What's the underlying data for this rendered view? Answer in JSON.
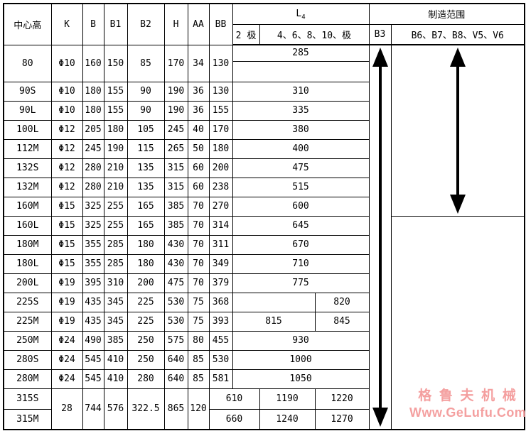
{
  "colors": {
    "background": "#ffffff",
    "border": "#000000",
    "text": "#000000",
    "watermark": "#f49f9f"
  },
  "table": {
    "headers": {
      "center_height": "中心高",
      "k": "K",
      "b": "B",
      "b1": "B1",
      "b2": "B2",
      "h": "H",
      "aa": "AA",
      "bb": "BB",
      "l4_base": "L",
      "l4_sub": "4",
      "poles_2": "2 极",
      "poles_other": "4、6、8、10、极",
      "mfg_range": "制造范围",
      "b3": "B3",
      "mounts": "B6、B7、B8、V5、V6"
    },
    "body": [
      {
        "name": "row-80",
        "cls": "r-sub",
        "cells": [
          {
            "t": "80",
            "rs": 2,
            "name": "model-cell"
          },
          {
            "t": "Φ10",
            "rs": 2
          },
          {
            "t": "160",
            "rs": 2
          },
          {
            "t": "150",
            "rs": 2
          },
          {
            "t": "85",
            "rs": 2
          },
          {
            "t": "170",
            "rs": 2
          },
          {
            "t": "34",
            "rs": 2
          },
          {
            "t": "130",
            "rs": 2
          },
          {
            "t": "285",
            "cs": 3,
            "name": "l4-cell"
          },
          {
            "arrow": "b3-range-arrow",
            "rs": 20,
            "name": "b3-range-cell"
          },
          {
            "arrow": "mfg-range-arrow",
            "rs": 9,
            "name": "mfg-range-upper-cell"
          }
        ]
      },
      {
        "name": "row-80-extra",
        "cls": "r-29",
        "cells": [
          {
            "t": "",
            "cs": 3,
            "name": "l4-empty-cell"
          }
        ]
      },
      {
        "name": "row-90S",
        "cells": [
          {
            "t": "90S",
            "name": "model-cell"
          },
          {
            "t": "Φ10"
          },
          {
            "t": "180"
          },
          {
            "t": "155"
          },
          {
            "t": "90"
          },
          {
            "t": "190"
          },
          {
            "t": "36"
          },
          {
            "t": "130"
          },
          {
            "t": "310",
            "cs": 3,
            "name": "l4-cell"
          }
        ]
      },
      {
        "name": "row-90L",
        "cells": [
          {
            "t": "90L",
            "name": "model-cell"
          },
          {
            "t": "Φ10"
          },
          {
            "t": "180"
          },
          {
            "t": "155"
          },
          {
            "t": "90"
          },
          {
            "t": "190"
          },
          {
            "t": "36"
          },
          {
            "t": "155"
          },
          {
            "t": "335",
            "cs": 3,
            "name": "l4-cell"
          }
        ]
      },
      {
        "name": "row-100L",
        "cells": [
          {
            "t": "100L",
            "name": "model-cell"
          },
          {
            "t": "Φ12"
          },
          {
            "t": "205"
          },
          {
            "t": "180"
          },
          {
            "t": "105"
          },
          {
            "t": "245"
          },
          {
            "t": "40"
          },
          {
            "t": "170"
          },
          {
            "t": "380",
            "cs": 3,
            "name": "l4-cell"
          }
        ]
      },
      {
        "name": "row-112M",
        "cells": [
          {
            "t": "112M",
            "name": "model-cell"
          },
          {
            "t": "Φ12"
          },
          {
            "t": "245"
          },
          {
            "t": "190"
          },
          {
            "t": "115"
          },
          {
            "t": "265"
          },
          {
            "t": "50"
          },
          {
            "t": "180"
          },
          {
            "t": "400",
            "cs": 3,
            "name": "l4-cell"
          }
        ]
      },
      {
        "name": "row-132S",
        "cells": [
          {
            "t": "132S",
            "name": "model-cell"
          },
          {
            "t": "Φ12"
          },
          {
            "t": "280"
          },
          {
            "t": "210"
          },
          {
            "t": "135"
          },
          {
            "t": "315"
          },
          {
            "t": "60"
          },
          {
            "t": "200"
          },
          {
            "t": "475",
            "cs": 3,
            "name": "l4-cell"
          }
        ]
      },
      {
        "name": "row-132M",
        "cells": [
          {
            "t": "132M",
            "name": "model-cell"
          },
          {
            "t": "Φ12"
          },
          {
            "t": "280"
          },
          {
            "t": "210"
          },
          {
            "t": "135"
          },
          {
            "t": "315"
          },
          {
            "t": "60"
          },
          {
            "t": "238"
          },
          {
            "t": "515",
            "cs": 3,
            "name": "l4-cell"
          }
        ]
      },
      {
        "name": "row-160M",
        "cells": [
          {
            "t": "160M",
            "name": "model-cell"
          },
          {
            "t": "Φ15"
          },
          {
            "t": "325"
          },
          {
            "t": "255"
          },
          {
            "t": "165"
          },
          {
            "t": "385"
          },
          {
            "t": "70"
          },
          {
            "t": "270"
          },
          {
            "t": "600",
            "cs": 3,
            "name": "l4-cell"
          }
        ]
      },
      {
        "name": "row-160L",
        "cells": [
          {
            "t": "160L",
            "name": "model-cell"
          },
          {
            "t": "Φ15"
          },
          {
            "t": "325"
          },
          {
            "t": "255"
          },
          {
            "t": "165"
          },
          {
            "t": "385"
          },
          {
            "t": "70"
          },
          {
            "t": "314"
          },
          {
            "t": "645",
            "cs": 3,
            "name": "l4-cell"
          },
          {
            "t": "",
            "rs": 11,
            "name": "mfg-range-lower-cell"
          }
        ]
      },
      {
        "name": "row-180M",
        "cells": [
          {
            "t": "180M",
            "name": "model-cell"
          },
          {
            "t": "Φ15"
          },
          {
            "t": "355"
          },
          {
            "t": "285"
          },
          {
            "t": "180"
          },
          {
            "t": "430"
          },
          {
            "t": "70"
          },
          {
            "t": "311"
          },
          {
            "t": "670",
            "cs": 3,
            "name": "l4-cell"
          }
        ]
      },
      {
        "name": "row-180L",
        "cells": [
          {
            "t": "180L",
            "name": "model-cell"
          },
          {
            "t": "Φ15"
          },
          {
            "t": "355"
          },
          {
            "t": "285"
          },
          {
            "t": "180"
          },
          {
            "t": "430"
          },
          {
            "t": "70"
          },
          {
            "t": "349"
          },
          {
            "t": "710",
            "cs": 3,
            "name": "l4-cell"
          }
        ]
      },
      {
        "name": "row-200L",
        "cells": [
          {
            "t": "200L",
            "name": "model-cell"
          },
          {
            "t": "Φ19"
          },
          {
            "t": "395"
          },
          {
            "t": "310"
          },
          {
            "t": "200"
          },
          {
            "t": "475"
          },
          {
            "t": "70"
          },
          {
            "t": "379"
          },
          {
            "t": "775",
            "cs": 3,
            "name": "l4-cell"
          }
        ]
      },
      {
        "name": "row-225S",
        "cells": [
          {
            "t": "225S",
            "name": "model-cell"
          },
          {
            "t": "Φ19"
          },
          {
            "t": "435"
          },
          {
            "t": "345"
          },
          {
            "t": "225"
          },
          {
            "t": "530"
          },
          {
            "t": "75"
          },
          {
            "t": "368"
          },
          {
            "t": "",
            "cs": 2,
            "name": "l4-left-cell"
          },
          {
            "t": "820",
            "name": "l4-right-cell"
          }
        ]
      },
      {
        "name": "row-225M",
        "cells": [
          {
            "t": "225M",
            "name": "model-cell"
          },
          {
            "t": "Φ19"
          },
          {
            "t": "435"
          },
          {
            "t": "345"
          },
          {
            "t": "225"
          },
          {
            "t": "530"
          },
          {
            "t": "75"
          },
          {
            "t": "393"
          },
          {
            "t": "815",
            "cs": 2,
            "name": "l4-left-cell"
          },
          {
            "t": "845",
            "name": "l4-right-cell"
          }
        ]
      },
      {
        "name": "row-250M",
        "cells": [
          {
            "t": "250M",
            "name": "model-cell"
          },
          {
            "t": "Φ24"
          },
          {
            "t": "490"
          },
          {
            "t": "385"
          },
          {
            "t": "250"
          },
          {
            "t": "575"
          },
          {
            "t": "80"
          },
          {
            "t": "455"
          },
          {
            "t": "930",
            "cs": 3,
            "name": "l4-cell"
          }
        ]
      },
      {
        "name": "row-280S",
        "cells": [
          {
            "t": "280S",
            "name": "model-cell"
          },
          {
            "t": "Φ24"
          },
          {
            "t": "545"
          },
          {
            "t": "410"
          },
          {
            "t": "250"
          },
          {
            "t": "640"
          },
          {
            "t": "85"
          },
          {
            "t": "530"
          },
          {
            "t": "1000",
            "cs": 3,
            "name": "l4-cell"
          }
        ]
      },
      {
        "name": "row-280M",
        "cells": [
          {
            "t": "280M",
            "name": "model-cell"
          },
          {
            "t": "Φ24"
          },
          {
            "t": "545"
          },
          {
            "t": "410"
          },
          {
            "t": "280"
          },
          {
            "t": "640"
          },
          {
            "t": "85"
          },
          {
            "t": "581"
          },
          {
            "t": "1050",
            "cs": 3,
            "name": "l4-cell"
          }
        ]
      },
      {
        "name": "row-315S",
        "cls": "r-29",
        "cells": [
          {
            "t": "315S",
            "name": "model-cell"
          },
          {
            "t": "28",
            "rs": 2
          },
          {
            "t": "744",
            "rs": 2
          },
          {
            "t": "576",
            "rs": 2
          },
          {
            "t": "322.5",
            "rs": 2
          },
          {
            "t": "865",
            "rs": 2
          },
          {
            "t": "120",
            "rs": 2
          },
          {
            "t": "610",
            "cs": 2,
            "name": "l4-2pole-cell"
          },
          {
            "t": "1190",
            "name": "l4-mid-cell"
          },
          {
            "t": "1220",
            "name": "l4-right-cell"
          }
        ]
      },
      {
        "name": "row-315M",
        "cls": "r-29",
        "cells": [
          {
            "t": "315M",
            "name": "model-cell"
          },
          {
            "t": "660",
            "cs": 2,
            "name": "l4-2pole-cell"
          },
          {
            "t": "1240",
            "name": "l4-mid-cell"
          },
          {
            "t": "1270",
            "name": "l4-right-cell"
          }
        ]
      }
    ]
  },
  "watermark": {
    "line1": "格 鲁 夫 机 械",
    "line2": "Www.GeLufu.Com"
  }
}
